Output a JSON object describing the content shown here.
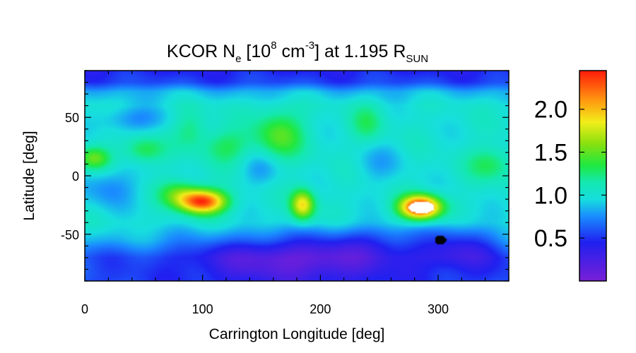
{
  "chart_data": {
    "type": "heatmap",
    "title": {
      "prefix": "KCOR N",
      "n_sub": "e",
      "mid": " [10",
      "exp": "8",
      "unit": " cm",
      "unit_exp": "-3",
      "tail": "] at 1.195 R",
      "r_sub": "SUN"
    },
    "xlabel": "Carrington Longitude [deg]",
    "ylabel": "Latitude [deg]",
    "xlim": [
      0,
      360
    ],
    "ylim": [
      -90,
      90
    ],
    "x_ticks": [
      {
        "value": 0,
        "label": "0"
      },
      {
        "value": 100,
        "label": "100"
      },
      {
        "value": 200,
        "label": "200"
      },
      {
        "value": 300,
        "label": "300"
      }
    ],
    "y_ticks": [
      {
        "value": 50,
        "label": "50"
      },
      {
        "value": 0,
        "label": "0"
      },
      {
        "value": -50,
        "label": "-50"
      }
    ],
    "colorbar": {
      "range": [
        0.0,
        2.45
      ],
      "ticks": [
        {
          "value": 2.0,
          "label": "2.0"
        },
        {
          "value": 1.5,
          "label": "1.5"
        },
        {
          "value": 1.0,
          "label": "1.0"
        },
        {
          "value": 0.5,
          "label": "0.5"
        }
      ]
    },
    "colormap_stops": [
      {
        "value": 0.0,
        "color": "#7a1fd6"
      },
      {
        "value": 0.45,
        "color": "#2020f0"
      },
      {
        "value": 0.75,
        "color": "#1a8cff"
      },
      {
        "value": 0.95,
        "color": "#17dede"
      },
      {
        "value": 1.15,
        "color": "#14e8b0"
      },
      {
        "value": 1.35,
        "color": "#20e840"
      },
      {
        "value": 1.6,
        "color": "#8ae010"
      },
      {
        "value": 1.85,
        "color": "#f2ee1a"
      },
      {
        "value": 2.1,
        "color": "#ff9a10"
      },
      {
        "value": 2.45,
        "color": "#ff1a0a"
      }
    ],
    "field": {
      "background": 1.0,
      "latitude_profile": [
        {
          "lat": 90,
          "value": -0.55
        },
        {
          "lat": 80,
          "value": -0.45
        },
        {
          "lat": 72,
          "value": -0.15
        },
        {
          "lat": 60,
          "value": 0.0
        },
        {
          "lat": -40,
          "value": 0.0
        },
        {
          "lat": -55,
          "value": -0.15
        },
        {
          "lat": -70,
          "value": -0.4
        },
        {
          "lat": -90,
          "value": -0.45
        }
      ],
      "features": [
        {
          "lon": 100,
          "lat": -22,
          "slon": 14,
          "slat": 7,
          "amp": 1.35
        },
        {
          "lon": 80,
          "lat": -15,
          "slon": 12,
          "slat": 8,
          "amp": 0.4
        },
        {
          "lon": 185,
          "lat": -25,
          "slon": 7,
          "slat": 9,
          "amp": 0.9
        },
        {
          "lon": 285,
          "lat": -27,
          "slon": 12,
          "slat": 7,
          "amp": 1.6
        },
        {
          "lon": 8,
          "lat": 15,
          "slon": 10,
          "slat": 7,
          "amp": 0.5
        },
        {
          "lon": 50,
          "lat": 22,
          "slon": 12,
          "slat": 8,
          "amp": 0.35
        },
        {
          "lon": 120,
          "lat": 25,
          "slon": 14,
          "slat": 10,
          "amp": 0.3
        },
        {
          "lon": 165,
          "lat": 35,
          "slon": 15,
          "slat": 15,
          "amp": 0.45
        },
        {
          "lon": 240,
          "lat": 45,
          "slon": 10,
          "slat": 12,
          "amp": 0.25
        },
        {
          "lon": 345,
          "lat": 10,
          "slon": 14,
          "slat": 10,
          "amp": 0.3
        },
        {
          "lon": 90,
          "lat": 40,
          "slon": 10,
          "slat": 12,
          "amp": 0.25
        },
        {
          "lon": 180,
          "lat": -70,
          "slon": 60,
          "slat": 15,
          "amp": -0.5
        },
        {
          "lon": 320,
          "lat": -60,
          "slon": 25,
          "slat": 14,
          "amp": -0.35
        },
        {
          "lon": 245,
          "lat": -55,
          "slon": 25,
          "slat": 10,
          "amp": -0.2
        },
        {
          "lon": 40,
          "lat": 48,
          "slon": 20,
          "slat": 8,
          "amp": -0.25
        },
        {
          "lon": 20,
          "lat": -10,
          "slon": 18,
          "slat": 12,
          "amp": -0.25
        },
        {
          "lon": 150,
          "lat": 5,
          "slon": 12,
          "slat": 10,
          "amp": -0.2
        },
        {
          "lon": 250,
          "lat": 10,
          "slon": 15,
          "slat": 12,
          "amp": -0.15
        }
      ],
      "saturated_regions": [
        {
          "lon": 286,
          "lat": -27,
          "rlon": 11,
          "rlat": 5,
          "color": "#ffffff"
        },
        {
          "lon": 302,
          "lat": -55,
          "rlon": 5,
          "rlat": 4,
          "color": "#000000"
        }
      ]
    }
  }
}
